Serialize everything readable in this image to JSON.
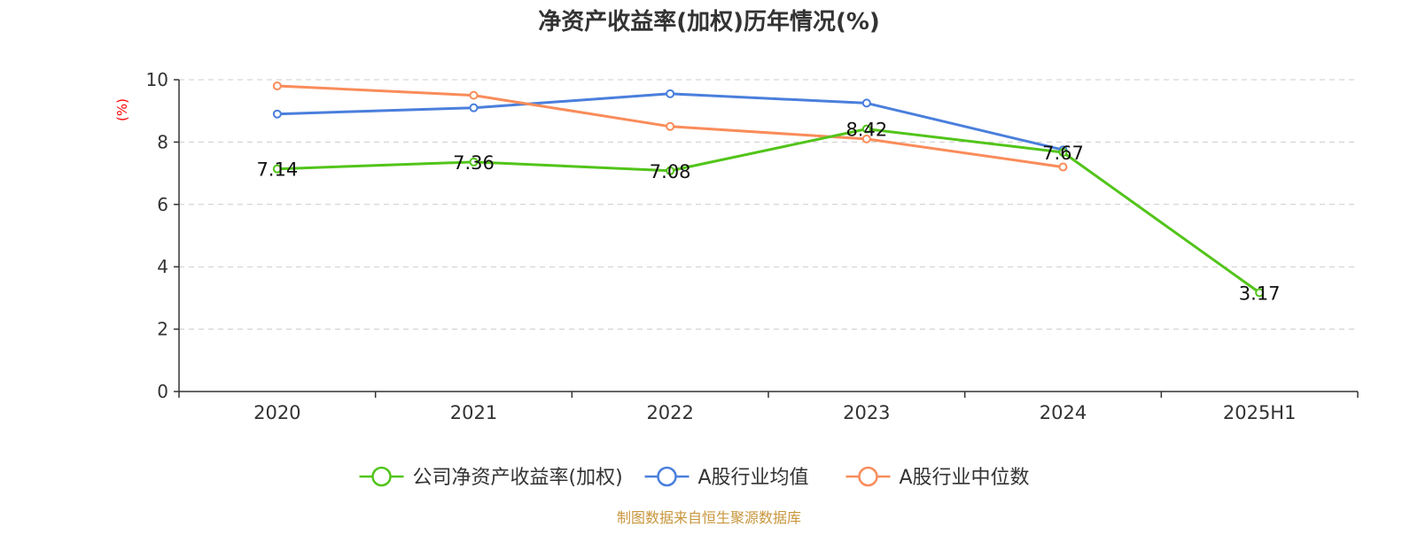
{
  "chart_data": {
    "type": "line",
    "title": "净资产收益率(加权)历年情况(%)",
    "ylabel": "(%)",
    "xlabel": "",
    "categories": [
      "2020",
      "2021",
      "2022",
      "2023",
      "2024",
      "2025H1"
    ],
    "ylim": [
      0,
      10
    ],
    "yticks": [
      0,
      2,
      4,
      6,
      8,
      10
    ],
    "grid": true,
    "legend_position": "bottom-center",
    "series": [
      {
        "name": "公司净资产收益率(加权)",
        "color": "#52c41a",
        "values": [
          7.14,
          7.36,
          7.08,
          8.42,
          7.67,
          3.17
        ],
        "labels": [
          "7.14",
          "7.36",
          "7.08",
          "8.42",
          "7.67",
          "3.17"
        ]
      },
      {
        "name": "A股行业均值",
        "color": "#4a7fdc",
        "values": [
          8.9,
          9.1,
          9.55,
          9.25,
          7.75,
          null
        ]
      },
      {
        "name": "A股行业中位数",
        "color": "#f98c5a",
        "values": [
          9.8,
          9.5,
          8.5,
          8.1,
          7.2,
          null
        ]
      }
    ],
    "source": "制图数据来自恒生聚源数据库"
  }
}
